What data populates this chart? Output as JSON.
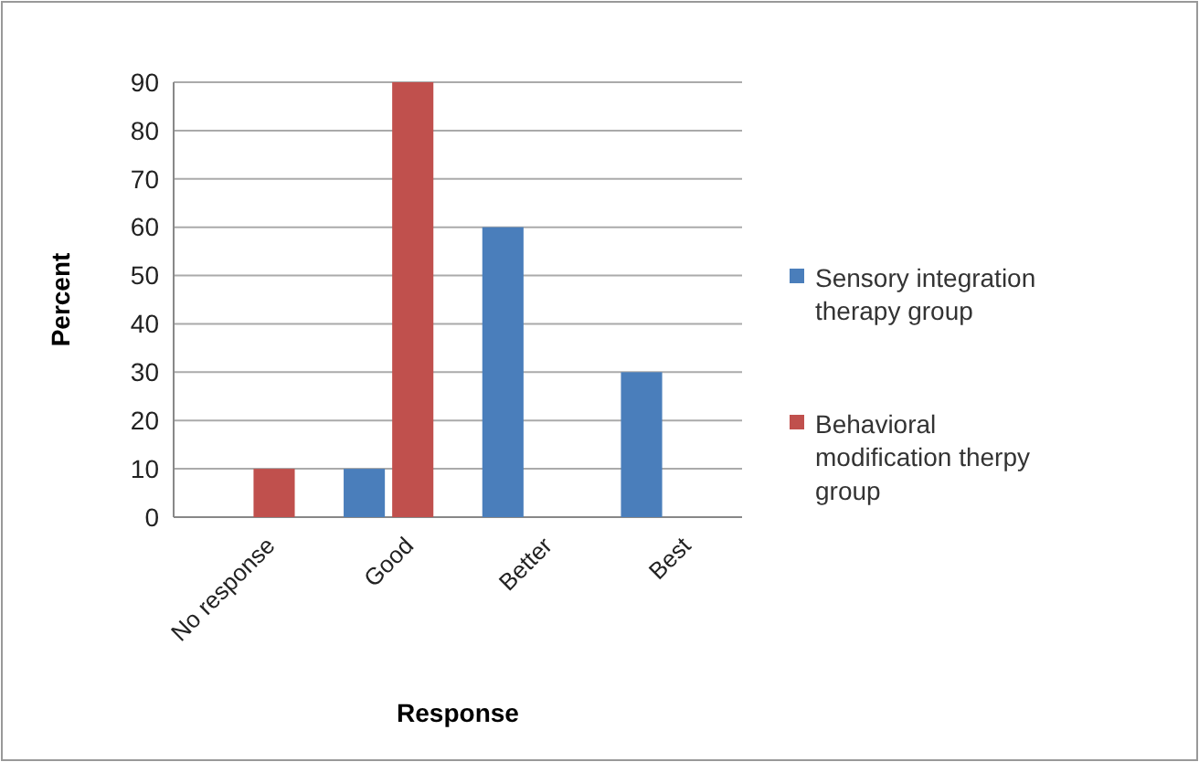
{
  "chart_data": {
    "type": "bar",
    "xlabel": "Response",
    "ylabel": "Percent",
    "categories": [
      "No response",
      "Good",
      "Better",
      "Best"
    ],
    "series": [
      {
        "name": "Sensory integration therapy group",
        "color": "#4a7ebb",
        "values": [
          0,
          10,
          60,
          30
        ]
      },
      {
        "name": "Behavioral modification therpy group",
        "color": "#c0504d",
        "values": [
          10,
          90,
          0,
          0
        ]
      }
    ],
    "ylim": [
      0,
      90
    ],
    "yticks": [
      0,
      10,
      20,
      30,
      40,
      50,
      60,
      70,
      80,
      90
    ],
    "grid": "y",
    "legend": "right"
  }
}
